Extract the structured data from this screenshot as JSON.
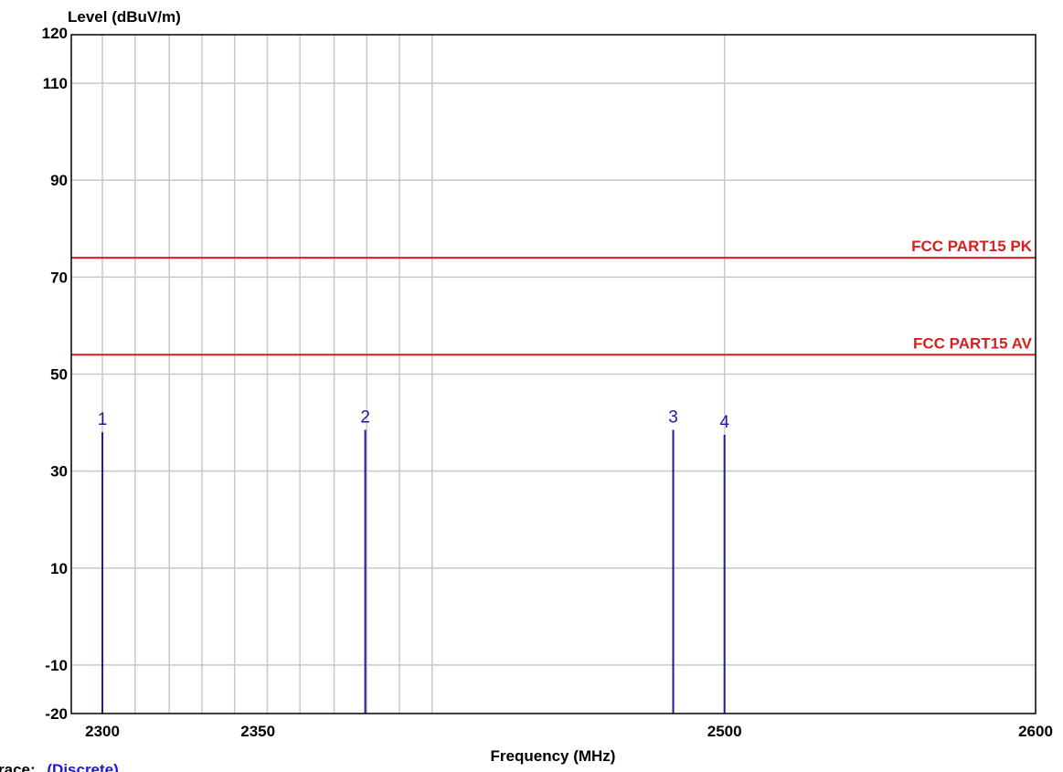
{
  "colors": {
    "grid": "#c8c8c8",
    "frame": "#000000",
    "limit": "#d42020",
    "marker": "#1a1aa6",
    "trace_value": "#1a1ad0"
  },
  "footer": {
    "trace_label": "race:",
    "trace_value": "(Discrete)"
  },
  "chart_data": {
    "type": "bar",
    "title": "",
    "xlabel": "Frequency (MHz)",
    "ylabel": "Level (dBuV/m)",
    "xlim": [
      2290,
      2600
    ],
    "ylim": [
      -20,
      120
    ],
    "grid": true,
    "y_ticks": [
      -20,
      -10,
      10,
      30,
      50,
      70,
      90,
      110,
      120
    ],
    "x_tick_labels": [
      {
        "value": 2300,
        "label": "2300"
      },
      {
        "value": 2350,
        "label": "2350"
      },
      {
        "value": 2500,
        "label": "2500"
      },
      {
        "value": 2600,
        "label": "2600"
      }
    ],
    "x_gridlines": [
      2300,
      2310.5,
      2321.5,
      2332,
      2342.5,
      2353,
      2363.5,
      2374.5,
      2385,
      2395.5,
      2406,
      2500
    ],
    "limit_lines": [
      {
        "name": "FCC PART15 PK",
        "value": 74
      },
      {
        "name": "FCC PART15 AV",
        "value": 54
      }
    ],
    "markers": [
      {
        "label": "1",
        "x": 2300,
        "y": 38
      },
      {
        "label": "2",
        "x": 2384.5,
        "y": 38.5
      },
      {
        "label": "3",
        "x": 2483.5,
        "y": 38.5
      },
      {
        "label": "4",
        "x": 2500,
        "y": 37.5
      }
    ]
  }
}
